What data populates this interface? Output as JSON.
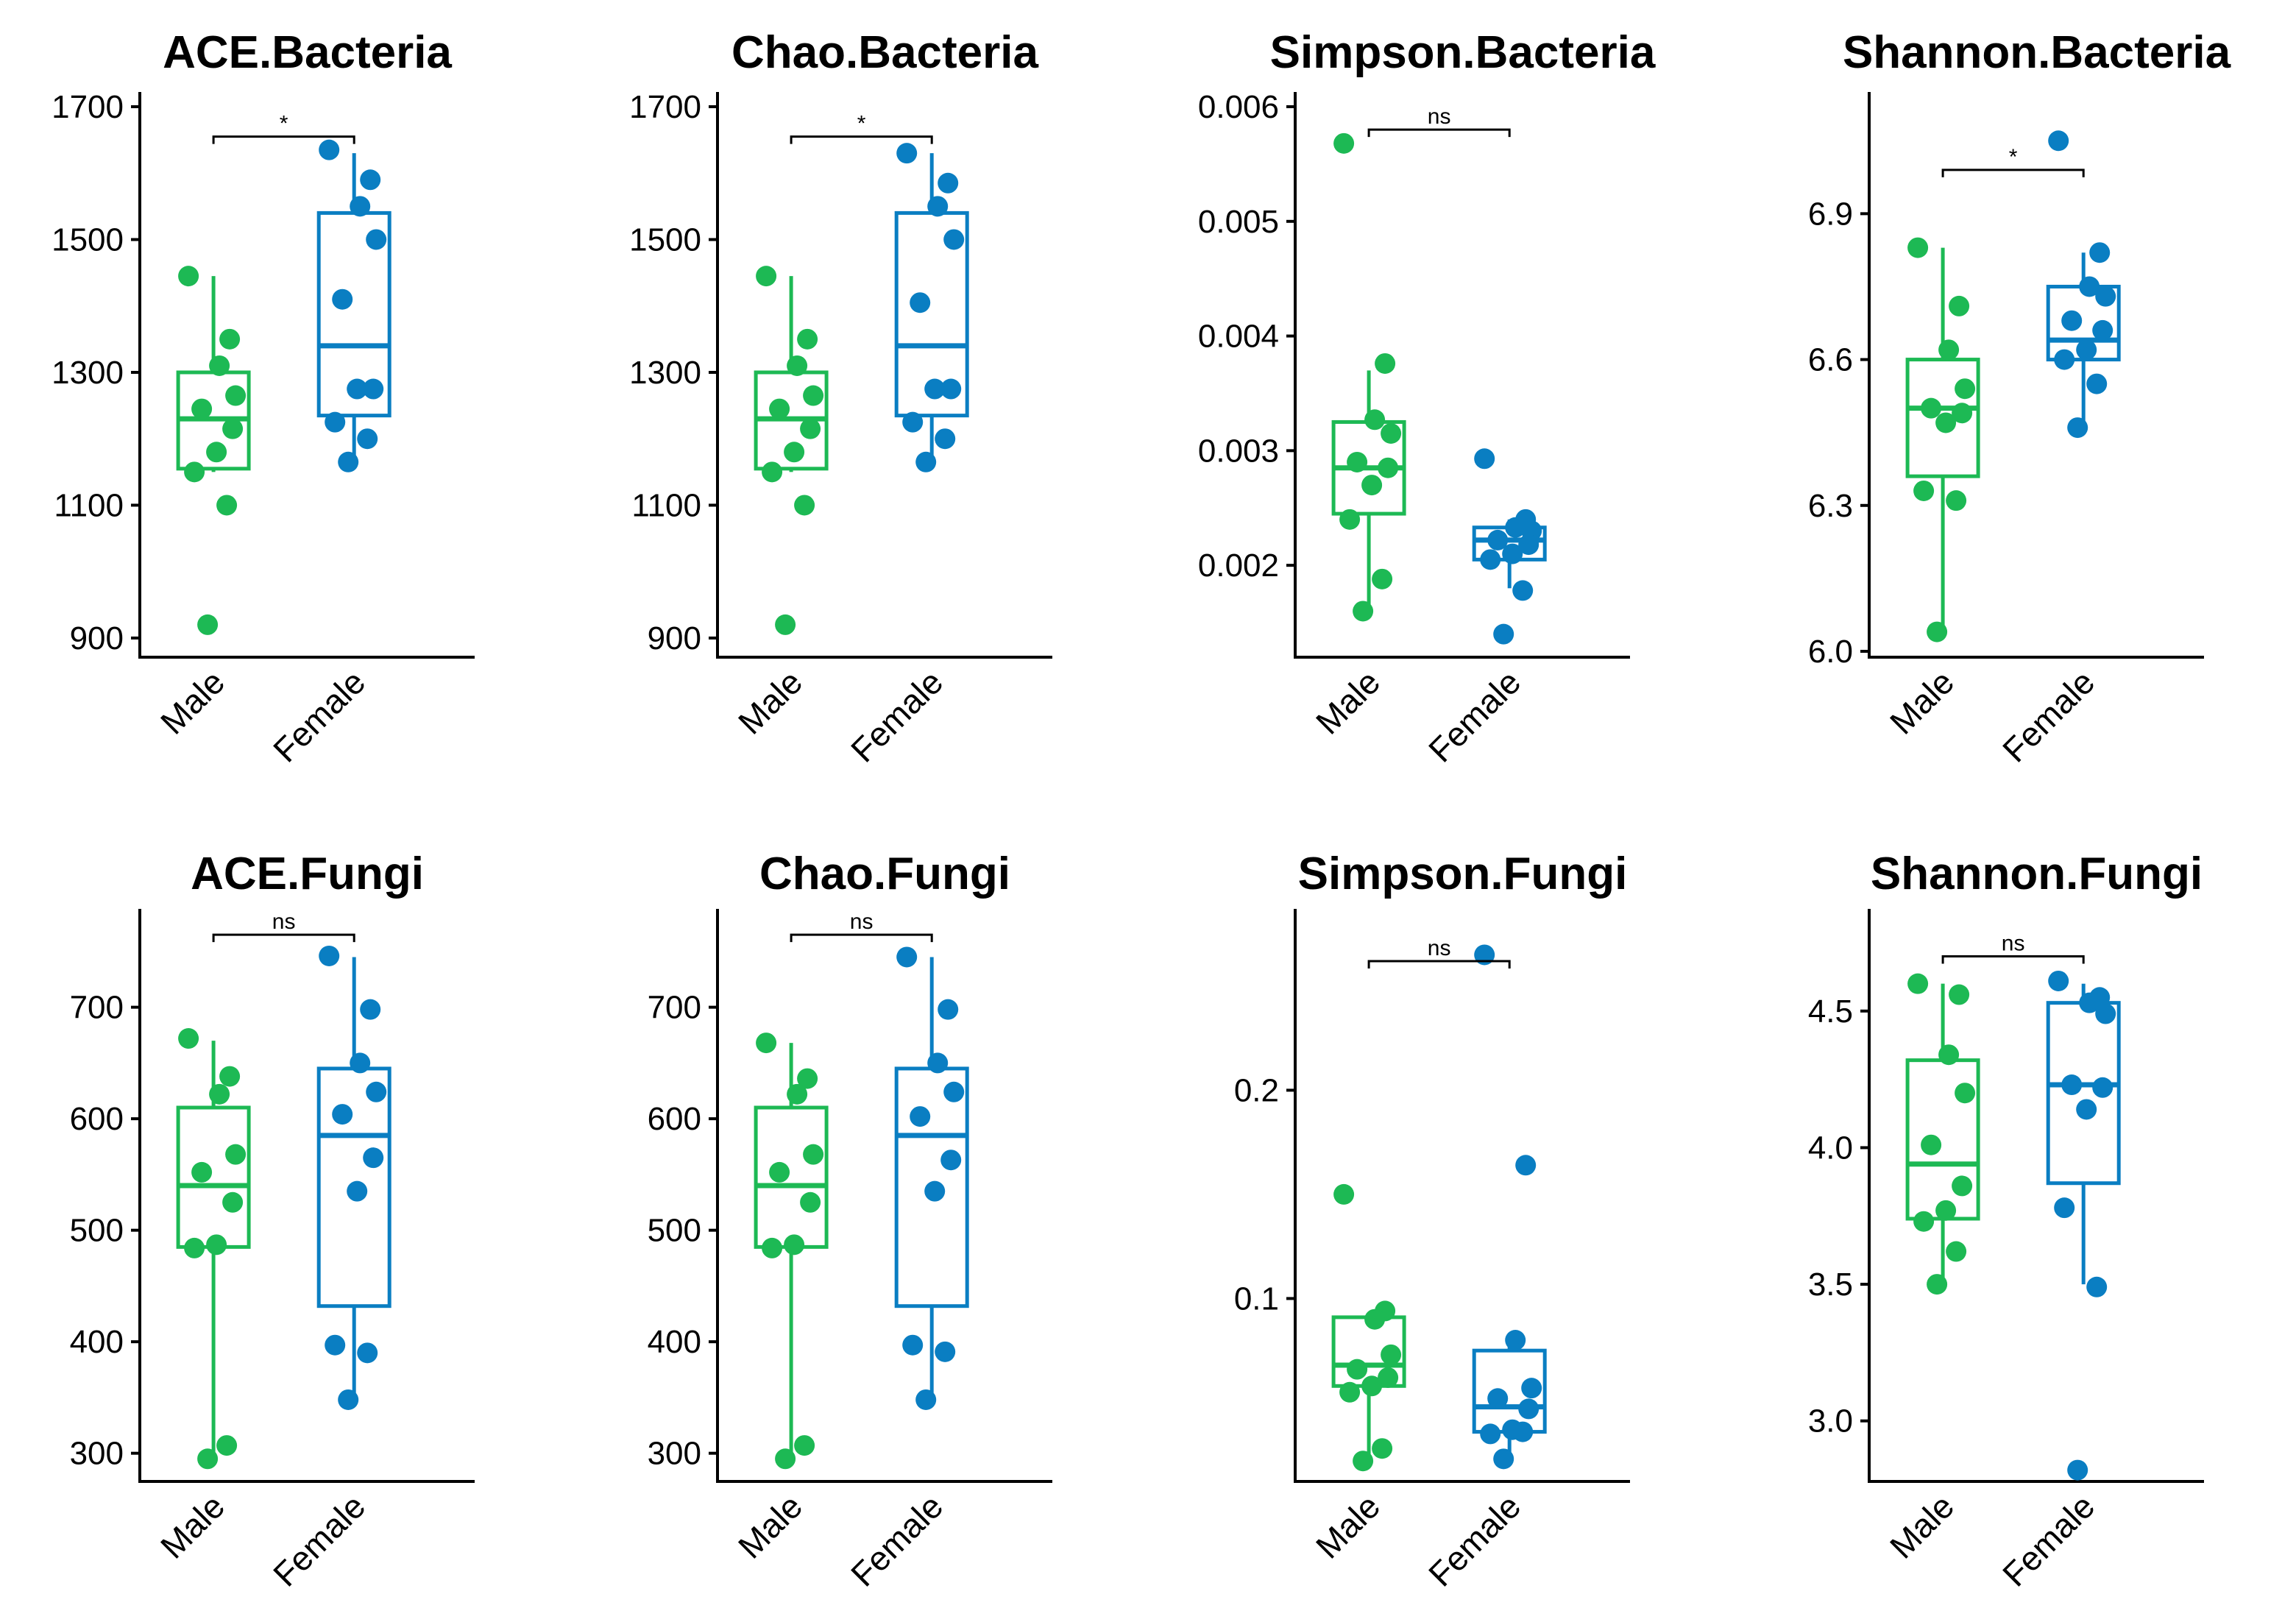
{
  "figure": {
    "group_colors": {
      "Male": "#1DB954",
      "Female": "#0A7EC2"
    }
  },
  "chart_data": [
    {
      "type": "box",
      "title": "ACE.Bacteria",
      "categories": [
        "Male",
        "Female"
      ],
      "yticks": [
        900,
        1100,
        1300,
        1500,
        1700
      ],
      "ytick_labels": [
        "900",
        "1100",
        "1300",
        "1500",
        "1700"
      ],
      "ylim": [
        880,
        1700
      ],
      "significance": "*",
      "bracket_y": 1655,
      "series": [
        {
          "name": "Male",
          "box": {
            "whisker_low": 1150,
            "q1": 1155,
            "median": 1230,
            "q3": 1300,
            "whisker_high": 1445
          },
          "points": [
            1445,
            1350,
            1310,
            1265,
            1245,
            1215,
            1180,
            1150,
            1100,
            920
          ]
        },
        {
          "name": "Female",
          "box": {
            "whisker_low": 1160,
            "q1": 1235,
            "median": 1340,
            "q3": 1540,
            "whisker_high": 1630
          },
          "points": [
            1635,
            1590,
            1550,
            1500,
            1410,
            1275,
            1275,
            1225,
            1200,
            1165
          ]
        }
      ]
    },
    {
      "type": "box",
      "title": "Chao.Bacteria",
      "categories": [
        "Male",
        "Female"
      ],
      "yticks": [
        900,
        1100,
        1300,
        1500,
        1700
      ],
      "ytick_labels": [
        "900",
        "1100",
        "1300",
        "1500",
        "1700"
      ],
      "ylim": [
        880,
        1700
      ],
      "significance": "*",
      "bracket_y": 1655,
      "series": [
        {
          "name": "Male",
          "box": {
            "whisker_low": 1150,
            "q1": 1155,
            "median": 1230,
            "q3": 1300,
            "whisker_high": 1445
          },
          "points": [
            1445,
            1350,
            1310,
            1265,
            1245,
            1215,
            1180,
            1150,
            1100,
            920
          ]
        },
        {
          "name": "Female",
          "box": {
            "whisker_low": 1160,
            "q1": 1235,
            "median": 1340,
            "q3": 1540,
            "whisker_high": 1630
          },
          "points": [
            1630,
            1585,
            1550,
            1500,
            1405,
            1275,
            1275,
            1225,
            1200,
            1165
          ]
        }
      ]
    },
    {
      "type": "box",
      "title": "Simpson.Bacteria",
      "categories": [
        "Male",
        "Female"
      ],
      "yticks": [
        0.002,
        0.003,
        0.004,
        0.005,
        0.006
      ],
      "ytick_labels": [
        "0.002",
        "0.003",
        "0.004",
        "0.005",
        "0.006"
      ],
      "ylim": [
        0.00125,
        0.006
      ],
      "significance": "ns",
      "bracket_y": 0.0058,
      "series": [
        {
          "name": "Male",
          "box": {
            "whisker_low": 0.0016,
            "q1": 0.00245,
            "median": 0.00285,
            "q3": 0.00325,
            "whisker_high": 0.0037
          },
          "points": [
            0.00568,
            0.00376,
            0.00327,
            0.00315,
            0.0029,
            0.00285,
            0.0027,
            0.0024,
            0.00188,
            0.0016
          ]
        },
        {
          "name": "Female",
          "box": {
            "whisker_low": 0.0018,
            "q1": 0.00205,
            "median": 0.00222,
            "q3": 0.00233,
            "whisker_high": 0.0024
          },
          "points": [
            0.00293,
            0.0024,
            0.00233,
            0.0023,
            0.00222,
            0.00218,
            0.0021,
            0.00205,
            0.00178,
            0.0014
          ]
        }
      ]
    },
    {
      "type": "box",
      "title": "Shannon.Bacteria",
      "categories": [
        "Male",
        "Female"
      ],
      "yticks": [
        6.0,
        6.3,
        6.6,
        6.9
      ],
      "ytick_labels": [
        "6.0",
        "6.3",
        "6.6",
        "6.9"
      ],
      "ylim": [
        6.0,
        7.12
      ],
      "significance": "*",
      "bracket_y": 6.99,
      "series": [
        {
          "name": "Male",
          "box": {
            "whisker_low": 6.04,
            "q1": 6.36,
            "median": 6.5,
            "q3": 6.6,
            "whisker_high": 6.83
          },
          "points": [
            6.83,
            6.71,
            6.62,
            6.54,
            6.5,
            6.49,
            6.47,
            6.33,
            6.31,
            6.04
          ]
        },
        {
          "name": "Female",
          "box": {
            "whisker_low": 6.46,
            "q1": 6.6,
            "median": 6.64,
            "q3": 6.75,
            "whisker_high": 6.82
          },
          "points": [
            7.05,
            6.82,
            6.75,
            6.73,
            6.68,
            6.66,
            6.62,
            6.6,
            6.55,
            6.46
          ]
        }
      ]
    },
    {
      "type": "box",
      "title": "ACE.Fungi",
      "categories": [
        "Male",
        "Female"
      ],
      "yticks": [
        300,
        400,
        500,
        600,
        700
      ],
      "ytick_labels": [
        "300",
        "400",
        "500",
        "600",
        "700"
      ],
      "ylim": [
        280,
        775
      ],
      "significance": "ns",
      "bracket_y": 765,
      "series": [
        {
          "name": "Male",
          "box": {
            "whisker_low": 295,
            "q1": 485,
            "median": 540,
            "q3": 610,
            "whisker_high": 670
          },
          "points": [
            672,
            638,
            622,
            568,
            552,
            525,
            487,
            484,
            307,
            295
          ]
        },
        {
          "name": "Female",
          "box": {
            "whisker_low": 348,
            "q1": 432,
            "median": 585,
            "q3": 645,
            "whisker_high": 745
          },
          "points": [
            746,
            698,
            650,
            624,
            604,
            565,
            535,
            397,
            390,
            348
          ]
        }
      ]
    },
    {
      "type": "box",
      "title": "Chao.Fungi",
      "categories": [
        "Male",
        "Female"
      ],
      "yticks": [
        300,
        400,
        500,
        600,
        700
      ],
      "ytick_labels": [
        "300",
        "400",
        "500",
        "600",
        "700"
      ],
      "ylim": [
        280,
        775
      ],
      "significance": "ns",
      "bracket_y": 765,
      "series": [
        {
          "name": "Male",
          "box": {
            "whisker_low": 295,
            "q1": 485,
            "median": 540,
            "q3": 610,
            "whisker_high": 668
          },
          "points": [
            668,
            636,
            622,
            568,
            552,
            525,
            487,
            484,
            307,
            295
          ]
        },
        {
          "name": "Female",
          "box": {
            "whisker_low": 348,
            "q1": 432,
            "median": 585,
            "q3": 645,
            "whisker_high": 745
          },
          "points": [
            745,
            698,
            650,
            624,
            602,
            563,
            535,
            397,
            391,
            348
          ]
        }
      ]
    },
    {
      "type": "box",
      "title": "Simpson.Fungi",
      "categories": [
        "Male",
        "Female"
      ],
      "yticks": [
        0.1,
        0.2
      ],
      "ytick_labels": [
        "0.1",
        "0.2"
      ],
      "ylim": [
        0.015,
        0.28
      ],
      "significance": "ns",
      "bracket_y": 0.262,
      "series": [
        {
          "name": "Male",
          "box": {
            "whisker_low": 0.022,
            "q1": 0.058,
            "median": 0.068,
            "q3": 0.091,
            "whisker_high": 0.093
          },
          "points": [
            0.15,
            0.094,
            0.09,
            0.073,
            0.066,
            0.062,
            0.058,
            0.055,
            0.028,
            0.022
          ]
        },
        {
          "name": "Female",
          "box": {
            "whisker_low": 0.026,
            "q1": 0.036,
            "median": 0.048,
            "q3": 0.075,
            "whisker_high": 0.08
          },
          "points": [
            0.265,
            0.164,
            0.08,
            0.057,
            0.052,
            0.047,
            0.037,
            0.035,
            0.036,
            0.023
          ]
        }
      ]
    },
    {
      "type": "box",
      "title": "Shannon.Fungi",
      "categories": [
        "Male",
        "Female"
      ],
      "yticks": [
        3.0,
        3.5,
        4.0,
        4.5
      ],
      "ytick_labels": [
        "3.0",
        "3.5",
        "4.0",
        "4.5"
      ],
      "ylim": [
        2.8,
        4.82
      ],
      "significance": "ns",
      "bracket_y": 4.7,
      "series": [
        {
          "name": "Male",
          "box": {
            "whisker_low": 3.5,
            "q1": 3.74,
            "median": 3.94,
            "q3": 4.32,
            "whisker_high": 4.6
          },
          "points": [
            4.6,
            4.56,
            4.34,
            4.2,
            4.01,
            3.86,
            3.77,
            3.73,
            3.62,
            3.5
          ]
        },
        {
          "name": "Female",
          "box": {
            "whisker_low": 3.5,
            "q1": 3.87,
            "median": 4.23,
            "q3": 4.53,
            "whisker_high": 4.6
          },
          "points": [
            4.61,
            4.55,
            4.53,
            4.49,
            4.23,
            4.22,
            4.14,
            3.78,
            3.49,
            2.82
          ]
        }
      ]
    }
  ]
}
